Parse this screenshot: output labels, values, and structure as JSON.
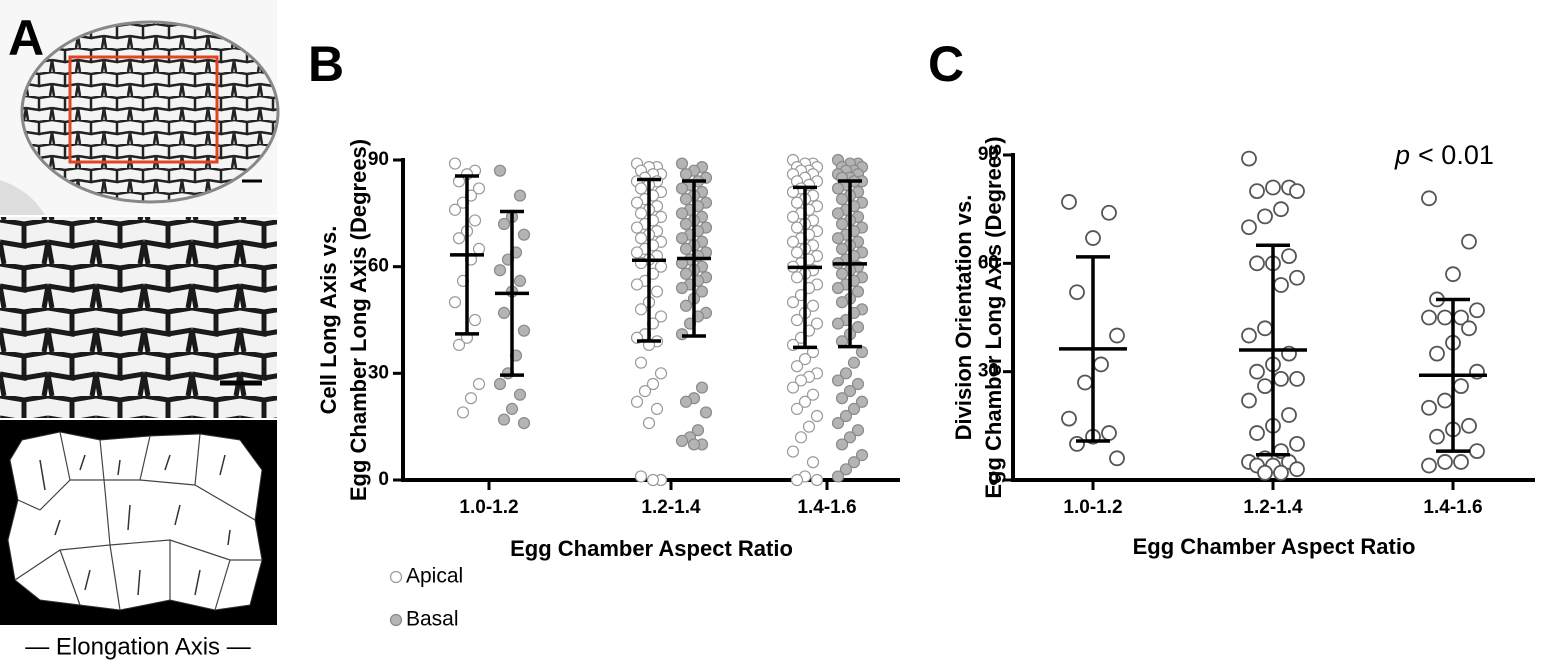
{
  "panel_labels": [
    "A",
    "B",
    "C"
  ],
  "elongation_label": "— Elongation Axis —",
  "chart_data": [
    {
      "type": "dotplot",
      "ylabel": [
        "Cell Long Axis vs.",
        "Egg Chamber Long Axis (Degrees)"
      ],
      "xlabel": "Egg Chamber Aspect Ratio",
      "categories": [
        "1.0-1.2",
        "1.2-1.4",
        "1.4-1.6"
      ],
      "ylim": [
        0,
        90
      ],
      "yticks": [
        0,
        30,
        60,
        90
      ],
      "legend": "bottom-left",
      "series": [
        {
          "name": "Apical",
          "color": "#ffffff",
          "stroke": "#9a9a9a",
          "values": [
            [
              89,
              87,
              86,
              84,
              82,
              80,
              78,
              76,
              73,
              70,
              68,
              65,
              62,
              56,
              50,
              45,
              40,
              38,
              27,
              23,
              19
            ],
            [
              89,
              88,
              88,
              87,
              86,
              86,
              85,
              84,
              84,
              83,
              82,
              81,
              80,
              79,
              78,
              77,
              76,
              75,
              74,
              73,
              72,
              71,
              70,
              69,
              68,
              67,
              66,
              65,
              64,
              63,
              62,
              61,
              60,
              58,
              56,
              55,
              53,
              50,
              48,
              46,
              44,
              41,
              40,
              39,
              38,
              33,
              30,
              27,
              25,
              22,
              20,
              16,
              1,
              0,
              0
            ],
            [
              90,
              89,
              89,
              88,
              88,
              87,
              87,
              86,
              86,
              85,
              84,
              84,
              83,
              82,
              81,
              80,
              79,
              78,
              77,
              76,
              75,
              74,
              73,
              72,
              71,
              70,
              69,
              68,
              67,
              66,
              65,
              64,
              63,
              62,
              61,
              60,
              59,
              58,
              57,
              55,
              54,
              52,
              50,
              49,
              47,
              45,
              44,
              42,
              40,
              38,
              36,
              34,
              32,
              30,
              29,
              28,
              26,
              24,
              22,
              20,
              18,
              15,
              12,
              8,
              5,
              1,
              0,
              0
            ]
          ],
          "mean": [
            63.3,
            61.8,
            59.8
          ],
          "sd": [
            22.2,
            22.7,
            22.5
          ]
        },
        {
          "name": "Basal",
          "color": "#b4b4b4",
          "stroke": "#8a8a8a",
          "values": [
            [
              87,
              80,
              74,
              72,
              69,
              64,
              62,
              59,
              56,
              53,
              47,
              42,
              35,
              30,
              27,
              24,
              20,
              17,
              16
            ],
            [
              89,
              88,
              87,
              86,
              85,
              84,
              83,
              82,
              81,
              80,
              79,
              78,
              77,
              76,
              75,
              74,
              73,
              72,
              71,
              70,
              69,
              68,
              67,
              66,
              65,
              64,
              63,
              62,
              61,
              60,
              59,
              58,
              57,
              56,
              55,
              54,
              53,
              51,
              49,
              47,
              46,
              44,
              41,
              26,
              23,
              22,
              19,
              14,
              12,
              11,
              10,
              10
            ],
            [
              90,
              89,
              89,
              88,
              88,
              87,
              87,
              86,
              86,
              85,
              85,
              84,
              84,
              83,
              82,
              81,
              80,
              79,
              78,
              77,
              76,
              75,
              74,
              73,
              72,
              71,
              70,
              69,
              68,
              67,
              66,
              65,
              64,
              63,
              62,
              61,
              60,
              59,
              58,
              57,
              56,
              55,
              54,
              53,
              51,
              50,
              48,
              47,
              45,
              44,
              43,
              41,
              39,
              36,
              33,
              30,
              28,
              27,
              25,
              23,
              22,
              20,
              18,
              16,
              14,
              12,
              10,
              7,
              5,
              3,
              1
            ]
          ],
          "mean": [
            52.5,
            62.3,
            60.8
          ],
          "sd": [
            23.0,
            21.8,
            23.3
          ]
        }
      ]
    },
    {
      "type": "dotplot",
      "ylabel": [
        "Division Orientation vs.",
        "Egg Chamber Long Axis (Degrees)"
      ],
      "xlabel": "Egg Chamber Aspect Ratio",
      "categories": [
        "1.0-1.2",
        "1.2-1.4",
        "1.4-1.6"
      ],
      "ylim": [
        0,
        90
      ],
      "yticks": [
        0,
        30,
        60,
        90
      ],
      "annotation": [
        "p",
        "< 0.01"
      ],
      "series": [
        {
          "color": "#ffffff",
          "stroke": "#555555",
          "values": [
            [
              77,
              74,
              67,
              52,
              40,
              32,
              27,
              17,
              13,
              12,
              10,
              6
            ],
            [
              89,
              81,
              81,
              80,
              80,
              75,
              73,
              70,
              62,
              60,
              60,
              56,
              54,
              42,
              40,
              35,
              32,
              30,
              28,
              28,
              26,
              22,
              18,
              15,
              13,
              10,
              8,
              6,
              5,
              5,
              4,
              4,
              3,
              2,
              2
            ],
            [
              78,
              66,
              57,
              50,
              47,
              45,
              45,
              45,
              42,
              38,
              35,
              30,
              26,
              22,
              20,
              15,
              14,
              12,
              8,
              5,
              5,
              4
            ]
          ],
          "mean": [
            36.3,
            36.0,
            29.0
          ],
          "sd": [
            25.5,
            29.0,
            21.0
          ]
        }
      ]
    }
  ]
}
